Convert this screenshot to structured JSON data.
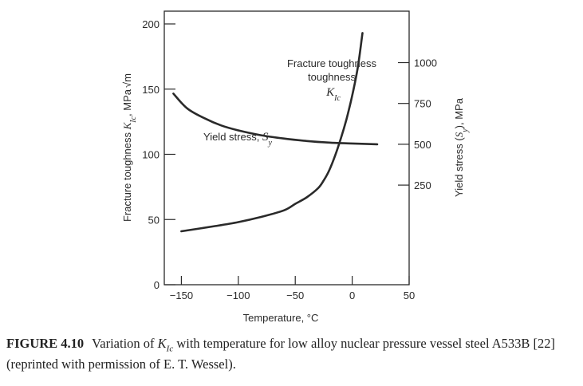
{
  "chart_data": {
    "type": "line",
    "xlabel": "Temperature, °C",
    "x_ticks": [
      -150,
      -100,
      -50,
      0,
      50
    ],
    "x_tick_labels": [
      "−150",
      "−100",
      "−50",
      "0",
      "50"
    ],
    "xlim": [
      -165,
      50
    ],
    "y_left": {
      "label_prefix": "Fracture toughness ",
      "label_symbol": "K",
      "label_sub": "Ic",
      "label_suffix": ", MPa",
      "label_root": "√m",
      "ticks": [
        0,
        50,
        100,
        150,
        200
      ],
      "lim": [
        0,
        200
      ]
    },
    "y_right": {
      "label_prefix": "Yield stress (",
      "label_symbol": "S",
      "label_sub": "y",
      "label_suffix": "), MPa",
      "ticks": [
        250,
        500,
        750,
        1000
      ],
      "lim": [
        -360,
        1315
      ]
    },
    "series": [
      {
        "name_text": "Fracture toughness",
        "name_symbol": "K",
        "name_sub": "Ic",
        "axis": "left",
        "x": [
          -150,
          -120,
          -100,
          -80,
          -60,
          -50,
          -40,
          -30,
          -25,
          -20,
          -15,
          -10,
          -5,
          0,
          5,
          9
        ],
        "y": [
          41,
          45,
          48,
          52,
          57,
          62,
          67,
          74,
          80,
          88,
          99,
          112,
          127,
          145,
          167,
          193
        ]
      },
      {
        "name_text": "Yield stress, ",
        "name_symbol": "S",
        "name_sub": "y",
        "axis": "right",
        "x": [
          -157,
          -145,
          -130,
          -115,
          -100,
          -80,
          -60,
          -40,
          -20,
          0,
          22
        ],
        "y": [
          810,
          720,
          660,
          615,
          585,
          555,
          535,
          520,
          510,
          505,
          500
        ]
      }
    ]
  },
  "caption": {
    "label": "FIGURE 4.10",
    "text_1": "Variation of ",
    "symbol": "K",
    "sub": "Ic",
    "text_2": " with temperature for low alloy nuclear pressure vessel steel A533B [22] (reprinted with permission of E. T. Wessel)."
  }
}
